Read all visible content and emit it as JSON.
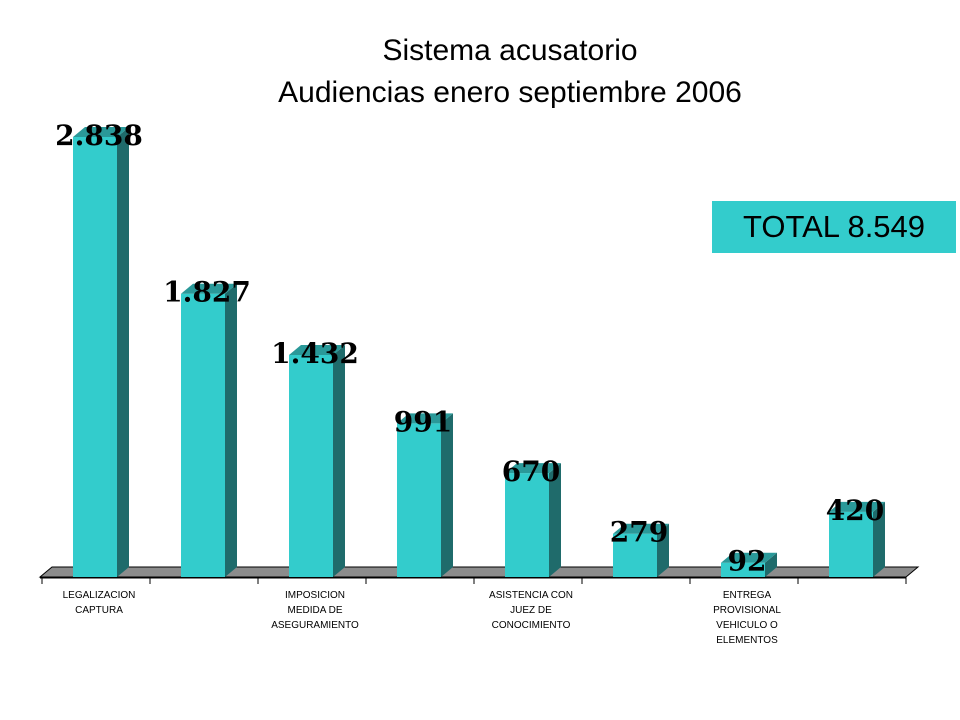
{
  "chart_data": {
    "type": "bar",
    "title": "Sistema acusatorio",
    "subtitle": "Audiencias enero septiembre 2006",
    "total_label": "TOTAL 8.549",
    "categories": [
      "LEGALIZACION CAPTURA",
      "",
      "IMPOSICION MEDIDA DE ASEGURAMIENTO",
      "",
      "ASISTENCIA CON JUEZ DE CONOCIMIENTO",
      "",
      "ENTREGA PROVISIONAL VEHICULO O ELEMENTOS",
      ""
    ],
    "category_lines": [
      [
        "LEGALIZACION",
        "CAPTURA"
      ],
      [],
      [
        "IMPOSICION",
        "MEDIDA DE",
        "ASEGURAMIENTO"
      ],
      [],
      [
        "ASISTENCIA CON",
        "JUEZ DE",
        "CONOCIMIENTO"
      ],
      [],
      [
        "ENTREGA",
        "PROVISIONAL",
        "VEHICULO O",
        "ELEMENTOS"
      ],
      []
    ],
    "values": [
      2838,
      1827,
      1432,
      991,
      670,
      279,
      92,
      420
    ],
    "value_labels": [
      "2.838",
      "1.827",
      "1.432",
      "991",
      "670",
      "279",
      "92",
      "420"
    ],
    "ylim": [
      0,
      2838
    ],
    "grid": false,
    "legend": "none",
    "colors": {
      "bar_front": "#33CCCC",
      "bar_side": "#1F6B6B",
      "bar_top": "#2A9999",
      "floor": "#8C8C8C",
      "total_box": "#33CCCC"
    }
  }
}
